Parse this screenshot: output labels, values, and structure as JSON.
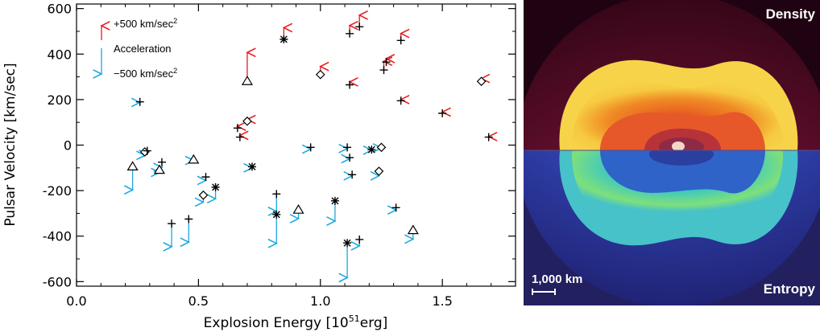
{
  "chart_data": {
    "type": "scatter",
    "xlabel": "Explosion Energy [10",
    "xlabel_sup": "51",
    "xlabel_tail": "erg]",
    "ylabel": "Pulsar Velocity [km/sec]",
    "xlim": [
      0.0,
      1.8
    ],
    "ylim": [
      -620,
      620
    ],
    "xticks": [
      "0.0",
      "0.5",
      "1.0",
      "1.5"
    ],
    "yticks": [
      "600",
      "400",
      "200",
      "0",
      "-200",
      "-400",
      "-600"
    ],
    "legend": {
      "placement": "top-left",
      "positive": "+500 km/sec",
      "middle": "Acceleration",
      "negative": "−500 km/sec",
      "superscript": "2"
    },
    "colors": {
      "positive": "#e8191f",
      "negative": "#1ba8e0",
      "marker": "#000000"
    },
    "points": [
      {
        "x": 0.26,
        "y": 190,
        "m": "plus",
        "a": -10
      },
      {
        "x": 0.23,
        "y": -95,
        "m": "triangle",
        "a": -400
      },
      {
        "x": 0.28,
        "y": -30,
        "m": "diamond",
        "a": -60
      },
      {
        "x": 0.29,
        "y": -25,
        "m": "plus",
        "a": -60
      },
      {
        "x": 0.34,
        "y": -110,
        "m": "triangle",
        "a": -40
      },
      {
        "x": 0.35,
        "y": -75,
        "m": "plus",
        "a": -90
      },
      {
        "x": 0.39,
        "y": -345,
        "m": "plus",
        "a": -400
      },
      {
        "x": 0.46,
        "y": -325,
        "m": "plus",
        "a": -400
      },
      {
        "x": 0.48,
        "y": -65,
        "m": "triangle",
        "a": -10
      },
      {
        "x": 0.52,
        "y": -220,
        "m": "diamond",
        "a": -120
      },
      {
        "x": 0.53,
        "y": -140,
        "m": "plus",
        "a": -60
      },
      {
        "x": 0.57,
        "y": -185,
        "m": "asterisk",
        "a": -200
      },
      {
        "x": 0.66,
        "y": 75,
        "m": "plus",
        "a": 30
      },
      {
        "x": 0.67,
        "y": 35,
        "m": "plus",
        "a": 30
      },
      {
        "x": 0.7,
        "y": 280,
        "m": "triangle",
        "a": 500
      },
      {
        "x": 0.7,
        "y": 105,
        "m": "diamond",
        "a": 30
      },
      {
        "x": 0.72,
        "y": -95,
        "m": "asterisk",
        "a": -20
      },
      {
        "x": 0.82,
        "y": -215,
        "m": "plus",
        "a": -300
      },
      {
        "x": 0.82,
        "y": -305,
        "m": "asterisk",
        "a": -500
      },
      {
        "x": 0.85,
        "y": 465,
        "m": "asterisk",
        "a": 200
      },
      {
        "x": 0.91,
        "y": -285,
        "m": "triangle",
        "a": -150
      },
      {
        "x": 0.96,
        "y": -10,
        "m": "plus",
        "a": -30
      },
      {
        "x": 1.0,
        "y": 310,
        "m": "diamond",
        "a": 140
      },
      {
        "x": 1.06,
        "y": -245,
        "m": "asterisk",
        "a": -350
      },
      {
        "x": 1.11,
        "y": -430,
        "m": "asterisk",
        "a": -600
      },
      {
        "x": 1.11,
        "y": -10,
        "m": "plus",
        "a": -20
      },
      {
        "x": 1.12,
        "y": -55,
        "m": "plus",
        "a": -20
      },
      {
        "x": 1.13,
        "y": -130,
        "m": "plus",
        "a": -20
      },
      {
        "x": 1.12,
        "y": 490,
        "m": "plus",
        "a": 140
      },
      {
        "x": 1.12,
        "y": 265,
        "m": "plus",
        "a": 50
      },
      {
        "x": 1.16,
        "y": 520,
        "m": "plus",
        "a": 200
      },
      {
        "x": 1.16,
        "y": -415,
        "m": "plus",
        "a": -110
      },
      {
        "x": 1.21,
        "y": -20,
        "m": "asterisk",
        "a": -10
      },
      {
        "x": 1.25,
        "y": -10,
        "m": "diamond",
        "a": -10
      },
      {
        "x": 1.24,
        "y": -115,
        "m": "diamond",
        "a": -80
      },
      {
        "x": 1.26,
        "y": 330,
        "m": "plus",
        "a": 150
      },
      {
        "x": 1.27,
        "y": 365,
        "m": "plus",
        "a": 60
      },
      {
        "x": 1.31,
        "y": -275,
        "m": "plus",
        "a": -40
      },
      {
        "x": 1.33,
        "y": 460,
        "m": "plus",
        "a": 120
      },
      {
        "x": 1.33,
        "y": 195,
        "m": "plus",
        "a": 20
      },
      {
        "x": 1.38,
        "y": -375,
        "m": "triangle",
        "a": -150
      },
      {
        "x": 1.5,
        "y": 140,
        "m": "plus",
        "a": 20
      },
      {
        "x": 1.66,
        "y": 280,
        "m": "diamond",
        "a": 50
      },
      {
        "x": 1.69,
        "y": 35,
        "m": "plus",
        "a": 10
      }
    ]
  },
  "panel": {
    "density_label": "Density",
    "entropy_label": "Entropy",
    "scale_label": "1,000 km"
  }
}
